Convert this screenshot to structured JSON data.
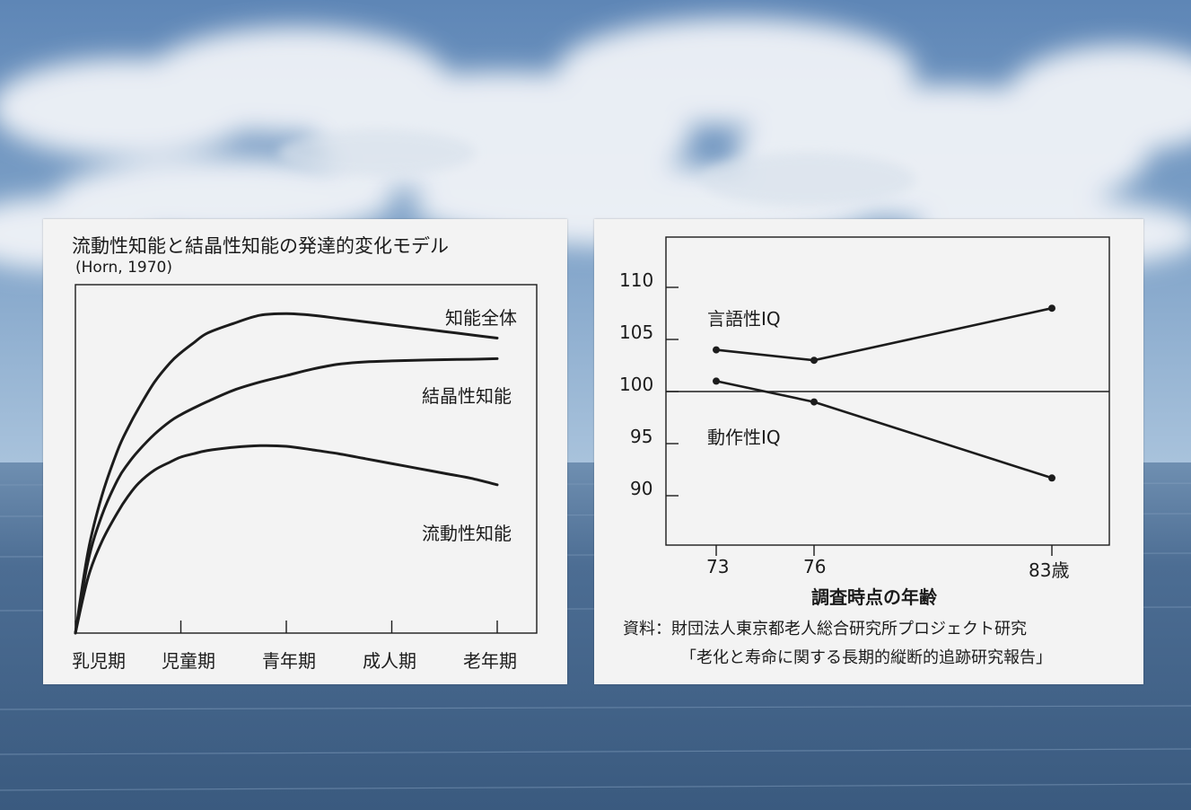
{
  "colors": {
    "panel_bg": "#f3f3f3",
    "ink": "#1c1c1c",
    "sky_top": "#6f93bf",
    "sea": "#3d5f86"
  },
  "left_chart": {
    "title": "流動性知能と結晶性知能の発達的変化モデル",
    "subtitle": "(Horn, 1970)",
    "curve_labels": {
      "overall": "知能全体",
      "crystallized": "結晶性知能",
      "fluid": "流動性知能"
    },
    "x_ticks": [
      "乳児期",
      "児童期",
      "青年期",
      "成人期",
      "老年期"
    ]
  },
  "right_chart": {
    "y_ticks": [
      "110",
      "105",
      "100",
      "95",
      "90"
    ],
    "x_ticks": [
      "73",
      "76",
      "83歳"
    ],
    "xlabel": "調査時点の年齢",
    "series_labels": {
      "verbal": "言語性IQ",
      "performance": "動作性IQ"
    },
    "source_line1": "資料：財団法人東京都老人総合研究所プロジェクト研究",
    "source_line2": "「老化と寿命に関する長期的縦断的追跡研究報告」"
  },
  "chart_data": [
    {
      "type": "line",
      "title": "流動性知能と結晶性知能の発達的変化モデル",
      "subtitle": "(Horn, 1970)",
      "categories": [
        "乳児期",
        "児童期",
        "青年期",
        "成人期",
        "老年期"
      ],
      "x": [
        0,
        0.12,
        0.25,
        0.4,
        0.5,
        0.6,
        0.75,
        0.9,
        1.0,
        1.12,
        1.25,
        1.5,
        1.75,
        2.0,
        2.25,
        2.5,
        2.75,
        3.0,
        3.25,
        3.5,
        3.75,
        4.0
      ],
      "grid": false,
      "series": [
        {
          "name": "知能全体",
          "values": [
            0,
            25,
            42,
            56,
            63,
            69,
            77,
            83,
            86,
            89,
            92,
            95,
            97.5,
            98,
            97.5,
            96.5,
            95.5,
            94.5,
            93.5,
            92.5,
            91.5,
            90.5
          ]
        },
        {
          "name": "結晶性知能",
          "values": [
            0,
            22,
            36,
            47,
            52,
            56,
            61,
            65,
            67,
            69,
            71,
            74.5,
            77,
            79,
            81,
            82.5,
            83.2,
            83.5,
            83.7,
            83.9,
            84.0,
            84.2
          ]
        },
        {
          "name": "流動性知能",
          "values": [
            0,
            17,
            28,
            37,
            42,
            46,
            50,
            52.5,
            54,
            55,
            56,
            57,
            57.5,
            57.3,
            56.2,
            55.0,
            53.5,
            52.0,
            50.5,
            49.0,
            47.5,
            45.5
          ]
        }
      ]
    },
    {
      "type": "line",
      "x": [
        73,
        76,
        83
      ],
      "xlabel": "調査時点の年齢",
      "yticks": [
        90,
        95,
        100,
        105,
        110
      ],
      "ylim": [
        86.7,
        113
      ],
      "reference_line": 100,
      "grid": false,
      "series": [
        {
          "name": "言語性IQ",
          "values": [
            104,
            103,
            108
          ]
        },
        {
          "name": "動作性IQ",
          "values": [
            101,
            99,
            91.7
          ]
        }
      ]
    }
  ]
}
